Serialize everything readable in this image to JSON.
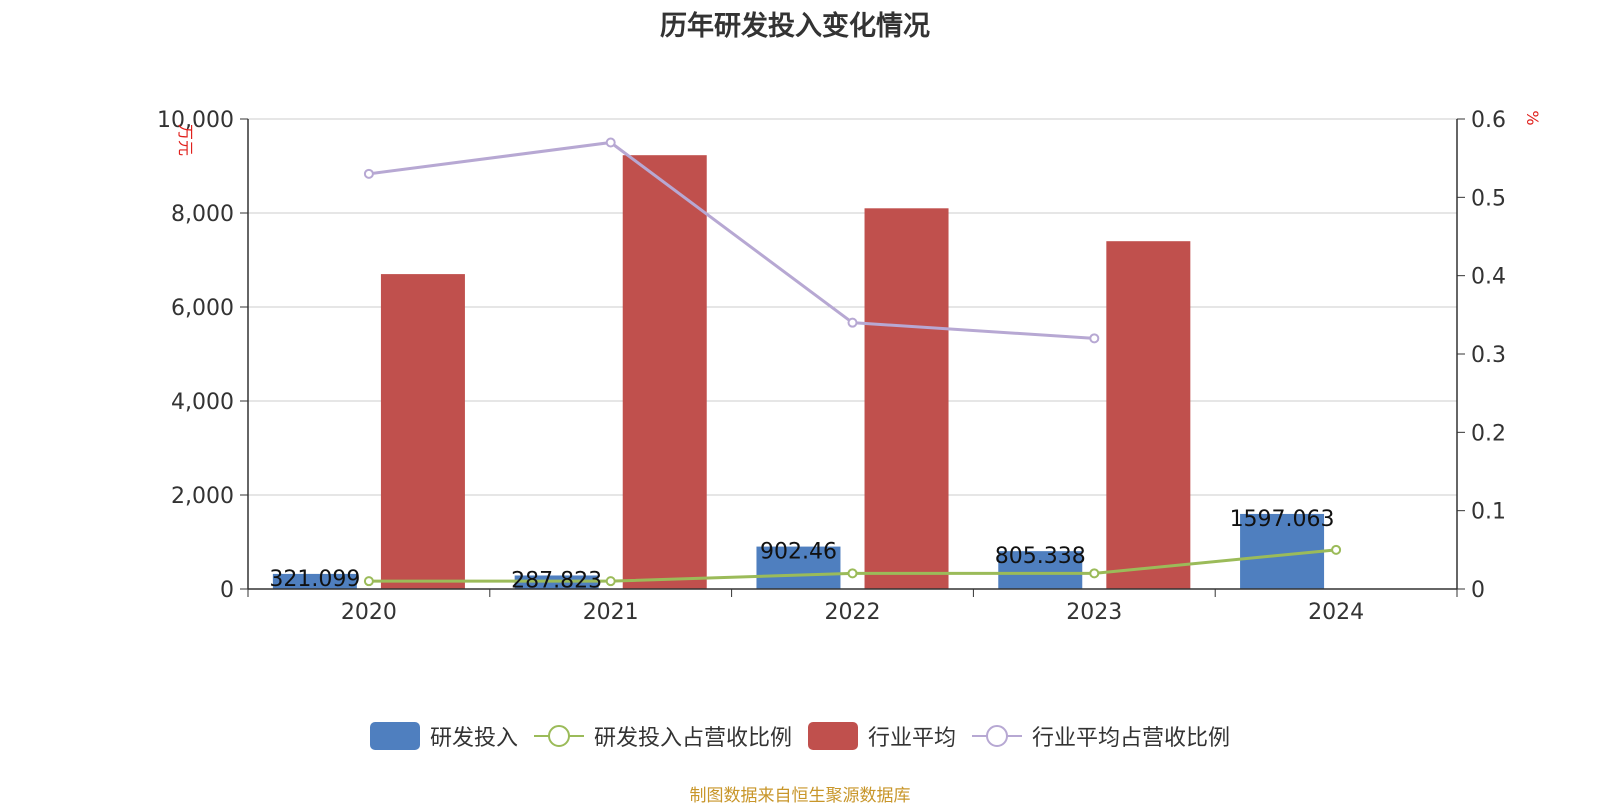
{
  "title": "历年研发投入变化情况",
  "source_note": "制图数据来自恒生聚源数据库",
  "colors": {
    "rd_bar": "#4f7fbf",
    "industry_bar": "#c0504d",
    "rd_ratio_line": "#9bbb59",
    "industry_ratio_line": "#b7a8d3",
    "unit_label": "#e0201c",
    "source": "#c8962a"
  },
  "chart_data": {
    "type": "bar",
    "categories": [
      "2020",
      "2021",
      "2022",
      "2023",
      "2024"
    ],
    "y_left": {
      "label": "万元",
      "min": 0,
      "max": 10000,
      "ticks": [
        "0",
        "2,000",
        "4,000",
        "6,000",
        "8,000",
        "10,000"
      ]
    },
    "y_right": {
      "label": "%",
      "min": 0,
      "max": 0.6,
      "ticks": [
        "0",
        "0.1",
        "0.2",
        "0.3",
        "0.4",
        "0.5",
        "0.6"
      ]
    },
    "grid": true,
    "legend_position": "bottom",
    "series": [
      {
        "name": "研发投入",
        "type": "bar",
        "axis": "left",
        "color": "#4f7fbf",
        "values": [
          321.099,
          287.823,
          902.46,
          805.338,
          1597.063
        ],
        "labels": [
          "321.099",
          "287.823",
          "902.46",
          "805.338",
          "1597.063"
        ]
      },
      {
        "name": "研发投入占营收比例",
        "type": "line",
        "axis": "right",
        "color": "#9bbb59",
        "values": [
          0.01,
          0.01,
          0.02,
          0.02,
          0.05
        ]
      },
      {
        "name": "行业平均",
        "type": "bar",
        "axis": "left",
        "color": "#c0504d",
        "values": [
          6700,
          9230,
          8100,
          7400,
          null
        ]
      },
      {
        "name": "行业平均占营收比例",
        "type": "line",
        "axis": "right",
        "color": "#b7a8d3",
        "values": [
          0.53,
          0.57,
          0.34,
          0.32,
          null
        ]
      }
    ]
  }
}
